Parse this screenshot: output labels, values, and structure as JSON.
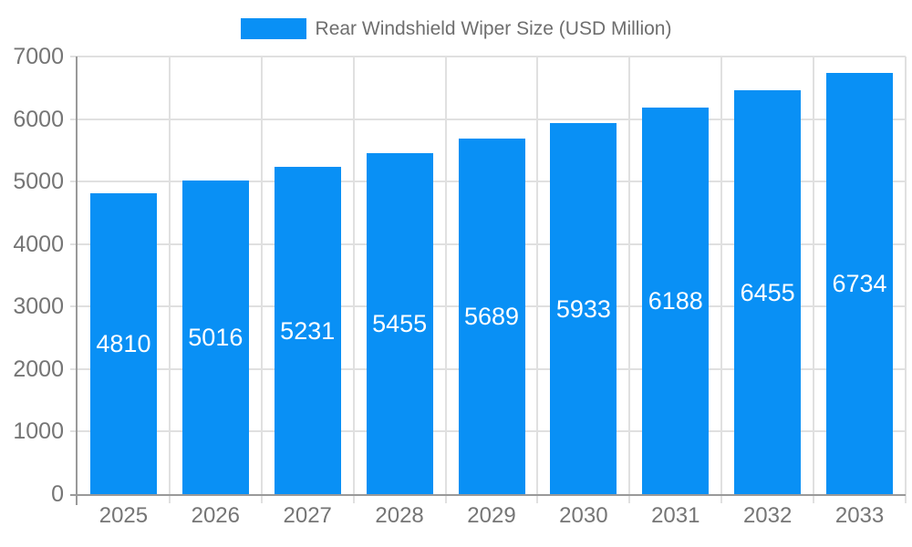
{
  "legend": {
    "label": "Rear Windshield Wiper Size (USD Million)"
  },
  "chart_data": {
    "type": "bar",
    "title": "Rear Windshield Wiper Size (USD Million)",
    "categories": [
      "2025",
      "2026",
      "2027",
      "2028",
      "2029",
      "2030",
      "2031",
      "2032",
      "2033"
    ],
    "values": [
      4810,
      5016,
      5231,
      5455,
      5689,
      5933,
      6188,
      6455,
      6734
    ],
    "series": [
      {
        "name": "Rear Windshield Wiper Size (USD Million)",
        "values": [
          4810,
          5016,
          5231,
          5455,
          5689,
          5933,
          6188,
          6455,
          6734
        ]
      }
    ],
    "xlabel": "",
    "ylabel": "",
    "ylim": [
      0,
      7000
    ],
    "yticks": [
      0,
      1000,
      2000,
      3000,
      4000,
      5000,
      6000,
      7000
    ],
    "grid": true,
    "legend_position": "top-center",
    "value_labels_position": "inside-center"
  },
  "colors": {
    "bar": "#0990f5",
    "grid": "#e0e0e0",
    "axis": "#999999",
    "tick_text": "#757575",
    "legend_text": "#6e6e6e",
    "value_text": "#ffffff",
    "background": "#ffffff"
  }
}
